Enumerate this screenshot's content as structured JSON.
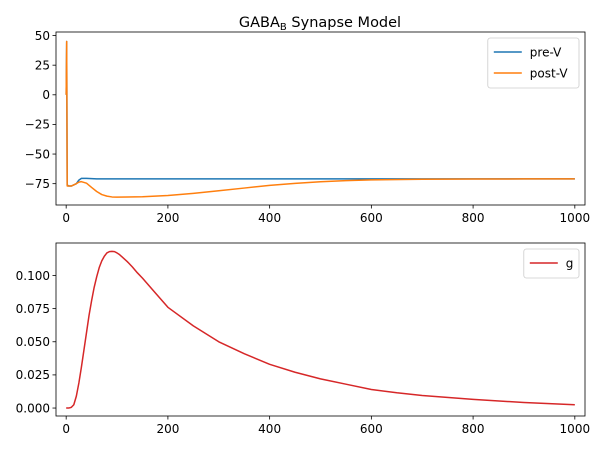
{
  "chart_data": [
    {
      "type": "line",
      "title_main": "GABA",
      "title_sub": "B",
      "title_rest": " Synapse Model",
      "xlim": [
        -20,
        1020
      ],
      "ylim": [
        -93,
        53
      ],
      "xticks": [
        0,
        200,
        400,
        600,
        800,
        1000
      ],
      "yticks": [
        50,
        25,
        0,
        -25,
        -50,
        -75
      ],
      "ytick_labels": [
        "50",
        "25",
        "0",
        "−25",
        "−50",
        "−75"
      ],
      "legend_position": "upper-right",
      "series": [
        {
          "name": "pre-V",
          "color": "#1f77b4",
          "x": [
            0,
            1,
            2,
            5,
            10,
            20,
            25,
            30,
            40,
            60,
            100,
            300,
            600,
            1000
          ],
          "y": [
            0,
            45,
            -76,
            -77,
            -77,
            -75,
            -72,
            -70.5,
            -70.5,
            -71,
            -71,
            -71,
            -71,
            -71
          ]
        },
        {
          "name": "post-V",
          "color": "#ff7f0e",
          "x": [
            0,
            1,
            2,
            3,
            5,
            10,
            20,
            25,
            30,
            40,
            50,
            60,
            70,
            80,
            90,
            100,
            120,
            150,
            200,
            250,
            300,
            350,
            400,
            450,
            500,
            550,
            600,
            700,
            800,
            900,
            1000
          ],
          "y": [
            0,
            45,
            -77,
            -77,
            -77,
            -77,
            -75,
            -73.7,
            -73.3,
            -74.6,
            -78.2,
            -81.6,
            -84.2,
            -85.5,
            -86.2,
            -86.4,
            -86.3,
            -86,
            -85,
            -83.2,
            -81,
            -78.7,
            -76.4,
            -74.7,
            -73.4,
            -72.4,
            -71.8,
            -71.3,
            -71.1,
            -71,
            -71
          ]
        }
      ]
    },
    {
      "type": "line",
      "xlim": [
        -20,
        1020
      ],
      "ylim": [
        -0.006,
        0.1245
      ],
      "xticks": [
        0,
        200,
        400,
        600,
        800,
        1000
      ],
      "yticks": [
        0.0,
        0.025,
        0.05,
        0.075,
        0.1
      ],
      "ytick_labels": [
        "0.000",
        "0.025",
        "0.050",
        "0.075",
        "0.100"
      ],
      "legend_position": "upper-right",
      "series": [
        {
          "name": "g",
          "color": "#d62728",
          "x": [
            0,
            5,
            10,
            15,
            20,
            25,
            30,
            35,
            40,
            45,
            50,
            55,
            60,
            65,
            70,
            75,
            80,
            85,
            90,
            95,
            100,
            105,
            110,
            120,
            130,
            140,
            150,
            175,
            200,
            250,
            300,
            350,
            400,
            450,
            500,
            550,
            600,
            650,
            700,
            800,
            900,
            1000
          ],
          "y": [
            0,
            0,
            0.0005,
            0.0025,
            0.009,
            0.019,
            0.031,
            0.044,
            0.057,
            0.07,
            0.081,
            0.091,
            0.099,
            0.106,
            0.111,
            0.1145,
            0.117,
            0.118,
            0.1182,
            0.118,
            0.117,
            0.1157,
            0.114,
            0.1105,
            0.1065,
            0.102,
            0.098,
            0.087,
            0.076,
            0.062,
            0.05,
            0.041,
            0.033,
            0.027,
            0.022,
            0.018,
            0.014,
            0.0115,
            0.0095,
            0.0065,
            0.0042,
            0.0025
          ]
        }
      ]
    }
  ]
}
